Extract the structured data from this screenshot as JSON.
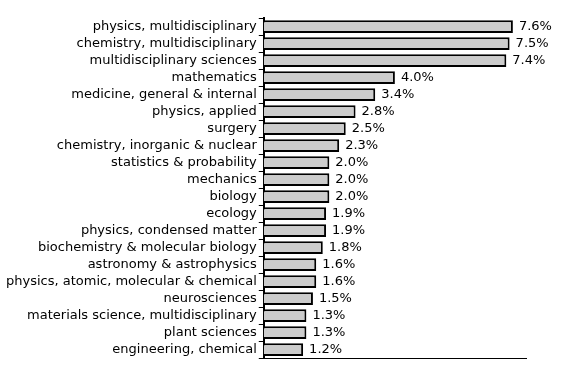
{
  "chart_data": {
    "type": "bar",
    "orientation": "horizontal",
    "categories": [
      "physics, multidisciplinary",
      "chemistry, multidisciplinary",
      "multidisciplinary sciences",
      "mathematics",
      "medicine, general & internal",
      "physics, applied",
      "surgery",
      "chemistry, inorganic & nuclear",
      "statistics & probability",
      "mechanics",
      "biology",
      "ecology",
      "physics, condensed matter",
      "biochemistry & molecular biology",
      "astronomy & astrophysics",
      "physics, atomic, molecular & chemical",
      "neurosciences",
      "materials science, multidisciplinary",
      "plant sciences",
      "engineering, chemical"
    ],
    "values": [
      7.6,
      7.5,
      7.4,
      4.0,
      3.4,
      2.8,
      2.5,
      2.3,
      2.0,
      2.0,
      2.0,
      1.9,
      1.9,
      1.8,
      1.6,
      1.6,
      1.5,
      1.3,
      1.3,
      1.2
    ],
    "value_labels": [
      "7.6%",
      "7.5%",
      "7.4%",
      "4.0%",
      "3.4%",
      "2.8%",
      "2.5%",
      "2.3%",
      "2.0%",
      "2.0%",
      "2.0%",
      "1.9%",
      "1.9%",
      "1.8%",
      "1.6%",
      "1.6%",
      "1.5%",
      "1.3%",
      "1.3%",
      "1.2%"
    ],
    "color": "#cccccc",
    "xlim": [
      0,
      8
    ],
    "grid": false,
    "data_labels": true,
    "tick_labels": "y"
  }
}
